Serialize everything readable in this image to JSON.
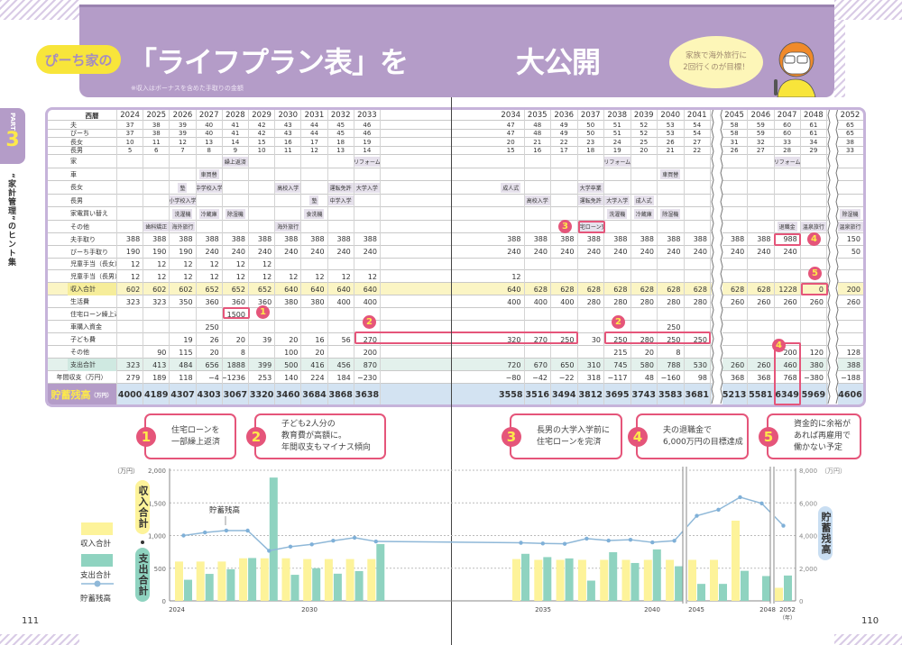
{
  "header": {
    "brand_badge": "ぴーち家の",
    "title_left": "「ライフプラン表」を",
    "title_right": "大公開",
    "note": "※収入はボーナスを含めた手取りの金額",
    "speech_line1": "家族で海外旅行に",
    "speech_line2": "2回行くのが目標！"
  },
  "side_tab": {
    "part": "PART",
    "number": "3",
    "section": "“家計管理”のヒント集"
  },
  "colors": {
    "purple": "#b49cc8",
    "pink": "#e5557a",
    "yellow": "#fdf39a",
    "teal": "#8fd3c0",
    "line_blue": "#8fb8d8"
  },
  "table": {
    "corner": "西暦",
    "years": [
      "2024",
      "2025",
      "2026",
      "2027",
      "2028",
      "2029",
      "2030",
      "2031",
      "2032",
      "2033",
      "2034",
      "2035",
      "2036",
      "2037",
      "2038",
      "2039",
      "2040",
      "2041",
      "2045",
      "2046",
      "2047",
      "2048",
      "2052"
    ],
    "age": {
      "label": "年齢",
      "rows": [
        {
          "label": "夫",
          "values": [
            "37",
            "38",
            "39",
            "40",
            "41",
            "42",
            "43",
            "44",
            "45",
            "46",
            "47",
            "48",
            "49",
            "50",
            "51",
            "52",
            "53",
            "54",
            "58",
            "59",
            "60",
            "61",
            "65"
          ]
        },
        {
          "label": "ぴーち",
          "values": [
            "37",
            "38",
            "39",
            "40",
            "41",
            "42",
            "43",
            "44",
            "45",
            "46",
            "47",
            "48",
            "49",
            "50",
            "51",
            "52",
            "53",
            "54",
            "58",
            "59",
            "60",
            "61",
            "65"
          ]
        },
        {
          "label": "長女",
          "values": [
            "10",
            "11",
            "12",
            "13",
            "14",
            "15",
            "16",
            "17",
            "18",
            "19",
            "20",
            "21",
            "22",
            "23",
            "24",
            "25",
            "26",
            "27",
            "31",
            "32",
            "33",
            "34",
            "38"
          ]
        },
        {
          "label": "長男",
          "values": [
            "5",
            "6",
            "7",
            "8",
            "9",
            "10",
            "11",
            "12",
            "13",
            "14",
            "15",
            "16",
            "17",
            "18",
            "19",
            "20",
            "21",
            "22",
            "26",
            "27",
            "28",
            "29",
            "33"
          ]
        }
      ]
    },
    "events": {
      "label": "イベント",
      "rows": [
        {
          "label": "家",
          "values": {
            "2028": "繰上返済",
            "2033": "リフォーム",
            "2038": "リフォーム",
            "2047": "リフォーム"
          }
        },
        {
          "label": "車",
          "values": {
            "2027": "車買替",
            "2040": "車買替"
          }
        },
        {
          "label": "長女",
          "values": {
            "2026": "塾",
            "2027": "中学校入学",
            "2030": "高校入学",
            "2032": "運転免許",
            "2033": "大学入学",
            "2034": "成人式",
            "2037": "大学卒業"
          }
        },
        {
          "label": "長男",
          "values": {
            "2026": "小学校入学",
            "2031": "塾",
            "2032": "中学入学",
            "2035": "高校入学",
            "2037": "運転免許",
            "2038": "大学入学",
            "2039": "成人式"
          }
        },
        {
          "label": "家電買い替え",
          "values": {
            "2026": "洗濯機",
            "2027": "冷蔵庫",
            "2028": "除湿機",
            "2031": "食洗機",
            "2038": "洗濯機",
            "2039": "冷蔵庫",
            "2040": "除湿機",
            "2052": "除湿機"
          }
        },
        {
          "label": "その他",
          "values": {
            "2025": "歯科矯正",
            "2026": "海外旅行",
            "2030": "海外旅行",
            "2037": "住宅ローン完",
            "2047": "退職金",
            "2048": "温泉旅行",
            "2052": "温泉旅行"
          }
        }
      ]
    },
    "income": {
      "label": "収入",
      "unit": "（万円）",
      "rows": [
        {
          "label": "夫手取り",
          "values": [
            "388",
            "388",
            "388",
            "388",
            "388",
            "388",
            "388",
            "388",
            "388",
            "388",
            "388",
            "388",
            "388",
            "388",
            "388",
            "388",
            "388",
            "388",
            "388",
            "388",
            "988",
            "",
            "150"
          ]
        },
        {
          "label": "ぴーち手取り",
          "values": [
            "190",
            "190",
            "190",
            "240",
            "240",
            "240",
            "240",
            "240",
            "240",
            "240",
            "240",
            "240",
            "240",
            "240",
            "240",
            "240",
            "240",
            "240",
            "240",
            "240",
            "240",
            "",
            "50"
          ]
        },
        {
          "label": "児童手当（長女）",
          "values": [
            "12",
            "12",
            "12",
            "12",
            "12",
            "12",
            "",
            "",
            "",
            "",
            "",
            "",
            "",
            "",
            "",
            "",
            "",
            "",
            "",
            "",
            "",
            "",
            ""
          ]
        },
        {
          "label": "児童手当（長男）",
          "values": [
            "12",
            "12",
            "12",
            "12",
            "12",
            "12",
            "12",
            "12",
            "12",
            "12",
            "12",
            "",
            "",
            "",
            "",
            "",
            "",
            "",
            "",
            "",
            "",
            "",
            ""
          ]
        },
        {
          "label": "収入合計",
          "values": [
            "602",
            "602",
            "602",
            "652",
            "652",
            "652",
            "640",
            "640",
            "640",
            "640",
            "640",
            "628",
            "628",
            "628",
            "628",
            "628",
            "628",
            "628",
            "628",
            "628",
            "1228",
            "0",
            "200"
          ]
        }
      ]
    },
    "expense": {
      "label": "支出",
      "unit": "（万円）",
      "rows": [
        {
          "label": "生活費",
          "values": [
            "323",
            "323",
            "350",
            "360",
            "360",
            "360",
            "380",
            "380",
            "400",
            "400",
            "400",
            "400",
            "400",
            "280",
            "280",
            "280",
            "280",
            "280",
            "260",
            "260",
            "260",
            "260",
            "260"
          ]
        },
        {
          "label": "住宅ローン繰上返済",
          "values": [
            "",
            "",
            "",
            "",
            "1500",
            "",
            "",
            "",
            "",
            "",
            "",
            "",
            "",
            "",
            "",
            "",
            "",
            "",
            "",
            "",
            "",
            "",
            ""
          ]
        },
        {
          "label": "車購入資金",
          "values": [
            "",
            "",
            "",
            "250",
            "",
            "",
            "",
            "",
            "",
            "",
            "",
            "",
            "",
            "",
            "",
            "",
            "250",
            "",
            "",
            "",
            "",
            "",
            ""
          ]
        },
        {
          "label": "子ども費",
          "values": [
            "",
            "",
            "19",
            "26",
            "20",
            "39",
            "20",
            "16",
            "56",
            "270",
            "320",
            "270",
            "250",
            "30",
            "250",
            "280",
            "250",
            "250",
            "",
            "",
            "",
            "",
            ""
          ]
        },
        {
          "label": "その他",
          "values": [
            "",
            "90",
            "115",
            "20",
            "8",
            "",
            "100",
            "20",
            "",
            "200",
            "",
            "",
            "",
            "",
            "215",
            "20",
            "8",
            "",
            "",
            "",
            "200",
            "120",
            "128"
          ]
        },
        {
          "label": "支出合計",
          "values": [
            "323",
            "413",
            "484",
            "656",
            "1888",
            "399",
            "500",
            "416",
            "456",
            "870",
            "720",
            "670",
            "650",
            "310",
            "745",
            "580",
            "788",
            "530",
            "260",
            "260",
            "460",
            "380",
            "388"
          ]
        }
      ]
    },
    "annual": {
      "label": "年間収支（万円）",
      "values": [
        "279",
        "189",
        "118",
        "−4",
        "−1236",
        "253",
        "140",
        "224",
        "184",
        "−230",
        "−80",
        "−42",
        "−22",
        "318",
        "−117",
        "48",
        "−160",
        "98",
        "368",
        "368",
        "768",
        "−380",
        "−188"
      ]
    },
    "savings": {
      "label": "貯蓄残高",
      "unit": "（万円）",
      "values": [
        "4000",
        "4189",
        "4307",
        "4303",
        "3067",
        "3320",
        "3460",
        "3684",
        "3868",
        "3638",
        "3558",
        "3516",
        "3494",
        "3812",
        "3695",
        "3743",
        "3583",
        "3681",
        "5213",
        "5581",
        "6349",
        "5969",
        "4606"
      ]
    }
  },
  "callouts": [
    {
      "number": "1",
      "line1": "住宅ローンを",
      "line2": "一部繰上返済",
      "line3": ""
    },
    {
      "number": "2",
      "line1": "子ども2人分の",
      "line2": "教育費が高額に。",
      "line3": "年間収支もマイナス傾向"
    },
    {
      "number": "3",
      "line1": "長男の大学入学前に",
      "line2": "住宅ローンを完済",
      "line3": ""
    },
    {
      "number": "4",
      "line1": "夫の退職金で",
      "line2": "6,000万円の目標達成",
      "line3": ""
    },
    {
      "number": "5",
      "line1": "資金的に余裕が",
      "line2": "あれば再雇用で",
      "line3": "働かない予定"
    }
  ],
  "markers": [
    "1",
    "2",
    "2",
    "3",
    "4",
    "4",
    "5"
  ],
  "chart_data": {
    "type": "bar+line",
    "categories": [
      "2024",
      "2025",
      "2026",
      "2027",
      "2028",
      "2029",
      "2030",
      "2031",
      "2032",
      "2033",
      "2034",
      "2035",
      "2036",
      "2037",
      "2038",
      "2039",
      "2040",
      "2041",
      "2045",
      "2046",
      "2047",
      "2048",
      "2052"
    ],
    "series": [
      {
        "name": "収入合計",
        "type": "bar",
        "axis": "left",
        "color": "#fdf39a",
        "values": [
          602,
          602,
          602,
          652,
          652,
          652,
          640,
          640,
          640,
          640,
          640,
          628,
          628,
          628,
          628,
          628,
          628,
          628,
          628,
          628,
          1228,
          0,
          200
        ]
      },
      {
        "name": "支出合計",
        "type": "bar",
        "axis": "left",
        "color": "#8fd3c0",
        "values": [
          323,
          413,
          484,
          656,
          1888,
          399,
          500,
          416,
          456,
          870,
          720,
          670,
          650,
          310,
          745,
          580,
          788,
          530,
          260,
          260,
          460,
          380,
          388
        ]
      },
      {
        "name": "貯蓄残高",
        "type": "line",
        "axis": "right",
        "color": "#8fb8d8",
        "values": [
          4000,
          4189,
          4307,
          4303,
          3067,
          3320,
          3460,
          3684,
          3868,
          3638,
          3558,
          3516,
          3494,
          3812,
          3695,
          3743,
          3583,
          3681,
          5213,
          5581,
          6349,
          5969,
          4606
        ]
      }
    ],
    "left_axis": {
      "label": "収入合計・支出合計",
      "unit": "（万円）",
      "range": [
        0,
        2000
      ],
      "ticks": [
        "0",
        "500",
        "1,000",
        "1,500",
        "2,000"
      ]
    },
    "right_axis": {
      "label": "貯蓄残高",
      "unit": "（万円）",
      "range": [
        0,
        8000
      ],
      "ticks": [
        "0",
        "2,000",
        "4,000",
        "6,000",
        "8,000"
      ]
    },
    "x_ticks": [
      "2024",
      "2030",
      "2035",
      "2040",
      "2045",
      "2048",
      "2052"
    ],
    "x_unit": "（年）",
    "line_annotation": "貯蓄残高",
    "axis_breaks": [
      "2041-2045",
      "2048-2052"
    ],
    "grid": "horizontal dashed",
    "legend_position": "left",
    "legend": [
      "収入合計",
      "支出合計",
      "貯蓄残高"
    ]
  },
  "page_numbers": {
    "left": "111",
    "right": "110"
  }
}
